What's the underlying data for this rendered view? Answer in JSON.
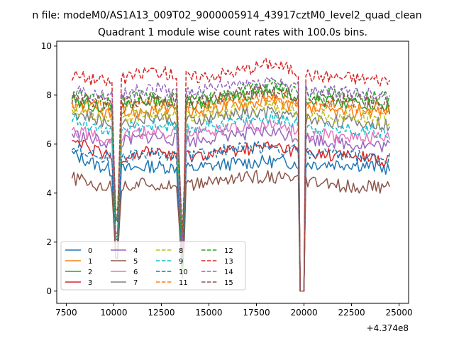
{
  "suptitle": "n file: modeM0/AS1A13_009T02_9000005914_43917cztM0_level2_quad_clean",
  "chart_data": {
    "type": "line",
    "title": "Quadrant 1 module wise count rates with 100.0s bins.",
    "xlabel": "",
    "ylabel": "",
    "x_offset_label": "+4.374e8",
    "xlim": [
      7000,
      25500
    ],
    "ylim": [
      -0.5,
      10.2
    ],
    "xticks": [
      7500,
      10000,
      12500,
      15000,
      17500,
      20000,
      22500,
      25000
    ],
    "yticks": [
      0,
      2,
      4,
      6,
      8,
      10
    ],
    "grid": false,
    "legend": {
      "placement": "lower-left",
      "columns": 4
    },
    "x_range": [
      7800,
      24500
    ],
    "dips": [
      {
        "from": 9900,
        "to": 10300,
        "min_x": 10150,
        "min_value": 2.0
      },
      {
        "from": 13300,
        "to": 13700,
        "min_x": 13600,
        "min_value": 0.3
      },
      {
        "from": 19700,
        "to": 20100,
        "min_value": 0
      }
    ],
    "series": [
      {
        "name": "0",
        "color": "#1f77b4",
        "dash": "solid",
        "base": 5.5,
        "values": [
          5.6,
          4.9,
          5.1,
          5.0,
          5.2,
          5.3,
          5.2,
          5.2,
          5.0
        ]
      },
      {
        "name": "1",
        "color": "#ff7f0e",
        "dash": "solid",
        "base": 7.6,
        "values": [
          7.6,
          7.2,
          7.4,
          7.3,
          7.6,
          7.8,
          7.4,
          7.3,
          7.4
        ]
      },
      {
        "name": "2",
        "color": "#2ca02c",
        "dash": "solid",
        "base": 7.7,
        "values": [
          7.8,
          7.4,
          7.8,
          7.6,
          7.9,
          8.2,
          7.8,
          7.7,
          7.5
        ]
      },
      {
        "name": "3",
        "color": "#d62728",
        "dash": "solid",
        "base": 6.0,
        "values": [
          6.1,
          5.4,
          5.7,
          5.5,
          5.7,
          5.9,
          5.6,
          5.5,
          5.3
        ]
      },
      {
        "name": "4",
        "color": "#9467bd",
        "dash": "solid",
        "base": 6.4,
        "values": [
          6.4,
          6.0,
          6.3,
          6.1,
          6.4,
          6.5,
          6.2,
          6.0,
          5.9
        ]
      },
      {
        "name": "5",
        "color": "#8c564b",
        "dash": "solid",
        "base": 4.4,
        "values": [
          4.6,
          4.2,
          4.4,
          4.3,
          4.6,
          4.7,
          4.4,
          4.3,
          4.2
        ]
      },
      {
        "name": "6",
        "color": "#e377c2",
        "dash": "solid",
        "base": 6.6,
        "values": [
          6.6,
          6.2,
          6.5,
          6.4,
          6.7,
          6.8,
          6.4,
          6.3,
          6.2
        ]
      },
      {
        "name": "7",
        "color": "#7f7f7f",
        "dash": "solid",
        "base": 7.1,
        "values": [
          7.3,
          6.8,
          7.1,
          6.9,
          7.2,
          7.3,
          7.0,
          6.9,
          6.8
        ]
      },
      {
        "name": "8",
        "color": "#bcbd22",
        "dash": "dashed",
        "base": 7.3,
        "values": [
          7.5,
          7.0,
          7.3,
          7.1,
          7.4,
          7.6,
          7.2,
          7.1,
          7.0
        ]
      },
      {
        "name": "9",
        "color": "#17becf",
        "dash": "dashed",
        "base": 6.9,
        "values": [
          7.0,
          6.5,
          6.8,
          6.6,
          6.9,
          7.1,
          6.7,
          6.6,
          6.5
        ]
      },
      {
        "name": "10",
        "color": "#1f77b4",
        "dash": "dashed",
        "base": 5.9,
        "values": [
          5.9,
          5.4,
          5.6,
          5.5,
          5.8,
          5.9,
          5.6,
          5.5,
          5.4
        ]
      },
      {
        "name": "11",
        "color": "#ff7f0e",
        "dash": "dashed",
        "base": 7.6,
        "values": [
          7.7,
          7.4,
          7.6,
          7.5,
          7.8,
          8.0,
          7.6,
          7.5,
          7.5
        ]
      },
      {
        "name": "12",
        "color": "#2ca02c",
        "dash": "dashed",
        "base": 8.0,
        "values": [
          8.0,
          7.7,
          8.0,
          7.8,
          8.1,
          8.4,
          8.0,
          8.0,
          7.9
        ]
      },
      {
        "name": "13",
        "color": "#d62728",
        "dash": "dashed",
        "base": 8.8,
        "values": [
          8.8,
          8.5,
          9.0,
          8.7,
          8.9,
          9.3,
          8.8,
          8.7,
          8.6
        ]
      },
      {
        "name": "14",
        "color": "#9467bd",
        "dash": "dashed",
        "base": 8.2,
        "values": [
          8.2,
          7.9,
          8.3,
          8.1,
          8.4,
          8.6,
          8.2,
          8.1,
          8.0
        ]
      },
      {
        "name": "15",
        "color": "#8c564b",
        "dash": "dashed",
        "base": 7.9,
        "values": [
          7.9,
          7.6,
          7.9,
          7.7,
          8.0,
          8.2,
          7.8,
          7.8,
          7.7
        ]
      }
    ]
  }
}
